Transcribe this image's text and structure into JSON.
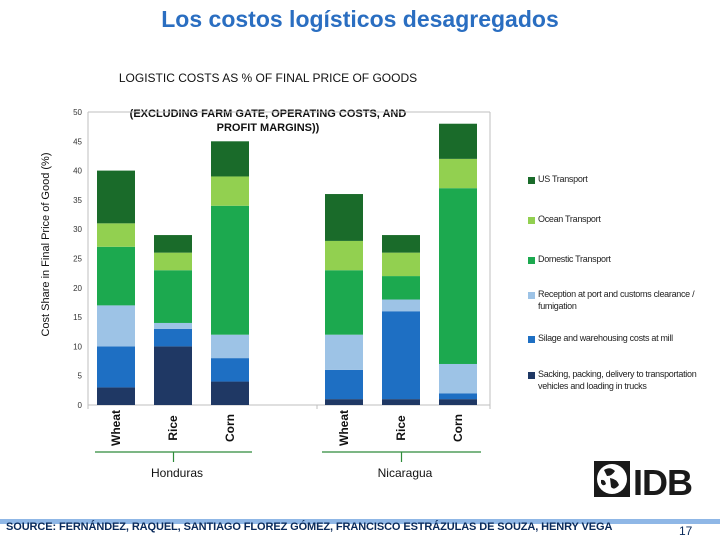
{
  "slide": {
    "title": "Los costos logísticos desagregados",
    "title_color": "#2a6ec1",
    "source": "SOURCE: FERNÁNDEZ, RAQUEL, SANTIAGO FLOREZ GÓMEZ, FRANCISCO ESTRÁZULAS DE SOUZA, HENRY VEGA",
    "page_number": "17",
    "logo_text": "IDB"
  },
  "chart_data": {
    "type": "bar",
    "stacked": true,
    "title": "LOGISTIC COSTS AS % OF FINAL PRICE OF GOODS",
    "subtitle": "(EXCLUDING FARM GATE, OPERATING COSTS, AND PROFIT MARGINS))",
    "ylabel": "Cost Share in Final Price of Good (%)",
    "xlabel": "",
    "ylim": [
      0,
      50
    ],
    "yticks": [
      0,
      5,
      10,
      15,
      20,
      25,
      30,
      35,
      40,
      45,
      50
    ],
    "grid": false,
    "legend_position": "right",
    "groups": [
      {
        "name": "Honduras",
        "categories": [
          "Wheat",
          "Rice",
          "Corn"
        ]
      },
      {
        "name": "Nicaragua",
        "categories": [
          "Wheat",
          "Rice",
          "Corn"
        ]
      }
    ],
    "categories": [
      "Wheat",
      "Rice",
      "Corn",
      "Wheat",
      "Rice",
      "Corn"
    ],
    "series": [
      {
        "name": "Sacking, packing, delivery to transportation vehicles and loading in trucks",
        "color": "#1f3864",
        "values": [
          3,
          10,
          4,
          1,
          1,
          1
        ]
      },
      {
        "name": "Silage and warehousing costs at mill",
        "color": "#1e6fc3",
        "values": [
          7,
          3,
          4,
          5,
          15,
          1
        ]
      },
      {
        "name": "Reception at port and customs clearance / fumigation",
        "color": "#9dc3e6",
        "values": [
          7,
          1,
          4,
          6,
          2,
          5
        ]
      },
      {
        "name": "Domestic Transport",
        "color": "#1ca94f",
        "values": [
          10,
          9,
          22,
          11,
          4,
          30
        ]
      },
      {
        "name": "Ocean Transport",
        "color": "#92d050",
        "values": [
          4,
          3,
          5,
          5,
          4,
          5
        ]
      },
      {
        "name": "US Transport",
        "color": "#1a6b2a",
        "values": [
          9,
          3,
          6,
          8,
          3,
          6
        ]
      }
    ]
  }
}
